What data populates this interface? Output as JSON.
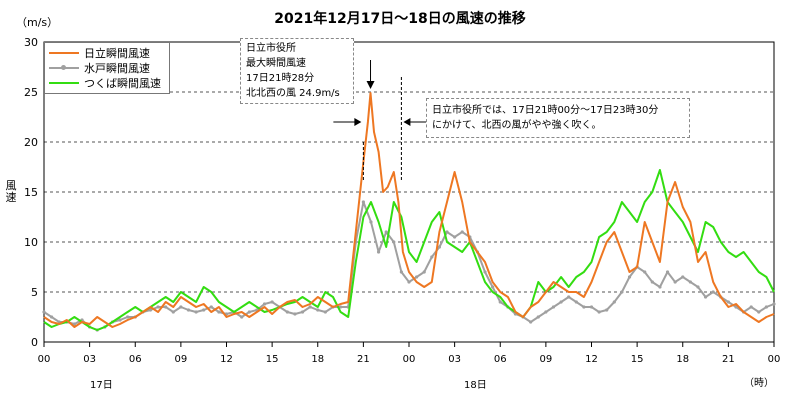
{
  "chart_data": {
    "type": "line",
    "title": "2021年12月17日～18日の風速の推移",
    "unit": "（m/s）",
    "ylabel": "風速",
    "ylim": [
      0,
      30
    ],
    "yticks": [
      0,
      5,
      10,
      15,
      20,
      25,
      30
    ],
    "xlim": [
      0,
      48
    ],
    "xticks": [
      "00",
      "03",
      "06",
      "09",
      "12",
      "15",
      "18",
      "21",
      "00",
      "03",
      "06",
      "09",
      "12",
      "15",
      "18",
      "21",
      "00"
    ],
    "xunit": "（時）",
    "days": [
      "17日",
      "18日"
    ],
    "grid": "horizontal dashed",
    "legend_position": "top-left",
    "series": [
      {
        "name": "日立瞬間風速",
        "color": "#ee7722",
        "x": [
          0,
          0.5,
          1,
          1.5,
          2,
          2.5,
          3,
          3.5,
          4,
          4.5,
          5,
          5.5,
          6,
          6.5,
          7,
          7.5,
          8,
          8.5,
          9,
          9.5,
          10,
          10.5,
          11,
          11.5,
          12,
          12.5,
          13,
          13.5,
          14,
          14.5,
          15,
          15.5,
          16,
          16.5,
          17,
          17.5,
          18,
          18.5,
          19,
          19.5,
          20,
          20.5,
          21,
          21.3,
          21.47,
          21.7,
          22,
          22.3,
          22.6,
          23,
          23.3,
          23.6,
          24,
          24.5,
          25,
          25.5,
          26,
          26.5,
          27,
          27.5,
          28,
          28.5,
          29,
          29.5,
          30,
          30.5,
          31,
          31.5,
          32,
          32.5,
          33,
          33.5,
          34,
          34.5,
          35,
          35.5,
          36,
          36.5,
          37,
          37.5,
          38,
          38.5,
          39,
          39.5,
          40,
          40.5,
          41,
          41.5,
          42,
          42.5,
          43,
          43.5,
          44,
          44.5,
          45,
          45.5,
          46,
          46.5,
          47,
          47.5,
          48
        ],
        "y": [
          2.5,
          2,
          1.8,
          2.2,
          1.5,
          2,
          1.8,
          2.5,
          2,
          1.5,
          1.8,
          2.2,
          2.5,
          3,
          3.5,
          3,
          4,
          3.5,
          4.5,
          4,
          3.5,
          3.8,
          3,
          3.5,
          2.5,
          2.8,
          3,
          2.5,
          3,
          3.5,
          2.8,
          3.5,
          4,
          4.2,
          3.5,
          3.8,
          4.5,
          4,
          3.5,
          3.8,
          4,
          11,
          18,
          22,
          24.9,
          21,
          19,
          15,
          15.5,
          17,
          14,
          9,
          7,
          6,
          5.5,
          6,
          11,
          14,
          17,
          14,
          10,
          9,
          8,
          6,
          5,
          4.5,
          3,
          2.5,
          3.5,
          4,
          5,
          6,
          5.5,
          5,
          5,
          4.5,
          6,
          8,
          10,
          11,
          9,
          7,
          7.5,
          12,
          10,
          8,
          14,
          16,
          13.5,
          12,
          8,
          9,
          6,
          4.5,
          3.5,
          3.8,
          3,
          2.5,
          2,
          2.5,
          2.8
        ]
      },
      {
        "name": "水戸瞬間風速",
        "color": "#a0a0a0",
        "x": [
          0,
          0.5,
          1,
          1.5,
          2,
          2.5,
          3,
          3.5,
          4,
          4.5,
          5,
          5.5,
          6,
          6.5,
          7,
          7.5,
          8,
          8.5,
          9,
          9.5,
          10,
          10.5,
          11,
          11.5,
          12,
          12.5,
          13,
          13.5,
          14,
          14.5,
          15,
          15.5,
          16,
          16.5,
          17,
          17.5,
          18,
          18.5,
          19,
          19.5,
          20,
          20.5,
          21,
          21.5,
          22,
          22.5,
          23,
          23.5,
          24,
          24.5,
          25,
          25.5,
          26,
          26.5,
          27,
          27.5,
          28,
          28.5,
          29,
          29.5,
          30,
          30.5,
          31,
          31.5,
          32,
          32.5,
          33,
          33.5,
          34,
          34.5,
          35,
          35.5,
          36,
          36.5,
          37,
          37.5,
          38,
          38.5,
          39,
          39.5,
          40,
          40.5,
          41,
          41.5,
          42,
          42.5,
          43,
          43.5,
          44,
          44.5,
          45,
          45.5,
          46,
          46.5,
          47,
          47.5,
          48
        ],
        "y": [
          3,
          2.5,
          2,
          2,
          1.8,
          2.2,
          1.5,
          1.2,
          1.5,
          2,
          2.2,
          2.5,
          2.5,
          3,
          3.2,
          3.5,
          3.5,
          3,
          3.5,
          3.2,
          3,
          3.2,
          3.5,
          3,
          2.8,
          3,
          2.5,
          3,
          3.2,
          3.8,
          4,
          3.5,
          3,
          2.8,
          3,
          3.5,
          3.2,
          3,
          3.5,
          3.5,
          3.5,
          10,
          14,
          12,
          9,
          11,
          10,
          7,
          6,
          6.5,
          7,
          8.5,
          9.5,
          11,
          10.5,
          11,
          10.5,
          9,
          7,
          5.5,
          4,
          3.5,
          2.8,
          2.5,
          2,
          2.5,
          3,
          3.5,
          4,
          4.5,
          4,
          3.5,
          3.5,
          3,
          3.2,
          4,
          5,
          6.5,
          7.5,
          7,
          6,
          5.5,
          7,
          6,
          6.5,
          6,
          5.5,
          4.5,
          5,
          4.5,
          4,
          3.5,
          3,
          3.5,
          3,
          3.5,
          3.8
        ]
      },
      {
        "name": "つくば瞬間風速",
        "color": "#33dd11",
        "x": [
          0,
          0.5,
          1,
          1.5,
          2,
          2.5,
          3,
          3.5,
          4,
          4.5,
          5,
          5.5,
          6,
          6.5,
          7,
          7.5,
          8,
          8.5,
          9,
          9.5,
          10,
          10.5,
          11,
          11.5,
          12,
          12.5,
          13,
          13.5,
          14,
          14.5,
          15,
          15.5,
          16,
          16.5,
          17,
          17.5,
          18,
          18.5,
          19,
          19.5,
          20,
          20.5,
          21,
          21.5,
          22,
          22.5,
          23,
          23.5,
          24,
          24.5,
          25,
          25.5,
          26,
          26.5,
          27,
          27.5,
          28,
          28.5,
          29,
          29.5,
          30,
          30.5,
          31,
          31.5,
          32,
          32.5,
          33,
          33.5,
          34,
          34.5,
          35,
          35.5,
          36,
          36.5,
          37,
          37.5,
          38,
          38.5,
          39,
          39.5,
          40,
          40.5,
          41,
          41.5,
          42,
          42.5,
          43,
          43.5,
          44,
          44.5,
          45,
          45.5,
          46,
          46.5,
          47,
          47.5,
          48
        ],
        "y": [
          2,
          1.5,
          1.8,
          2,
          2.5,
          2,
          1.5,
          1.2,
          1.5,
          2,
          2.5,
          3,
          3.5,
          3,
          3.5,
          4,
          4.5,
          4,
          5,
          4.5,
          4,
          5.5,
          5,
          4,
          3.5,
          3,
          3.5,
          4,
          3.5,
          3,
          3.2,
          3.5,
          3.8,
          4,
          4.5,
          4,
          3.5,
          5,
          4.5,
          3,
          2.5,
          8,
          12.5,
          14,
          12,
          9.5,
          14,
          12.5,
          9,
          8,
          10,
          12,
          13,
          10,
          9.5,
          9,
          10,
          8,
          6,
          5,
          4.5,
          3.5,
          3,
          2.5,
          3.5,
          6,
          5,
          5.5,
          6.5,
          5.5,
          6.5,
          7,
          8,
          10.5,
          11,
          12,
          14,
          13,
          12,
          14,
          15,
          17.2,
          14,
          13,
          12,
          10.5,
          9,
          12,
          11.5,
          10,
          9,
          8.5,
          9,
          8,
          7,
          6.5,
          5
        ]
      }
    ]
  },
  "annotations": {
    "peak_box": [
      "日立市役所",
      "最大瞬間風速",
      "17日21時28分",
      "北北西の風 24.9m/s"
    ],
    "period_box": [
      "日立市役所では、17日21時00分～17日23時30分",
      "にかけて、北西の風がやや強く吹く。"
    ]
  }
}
